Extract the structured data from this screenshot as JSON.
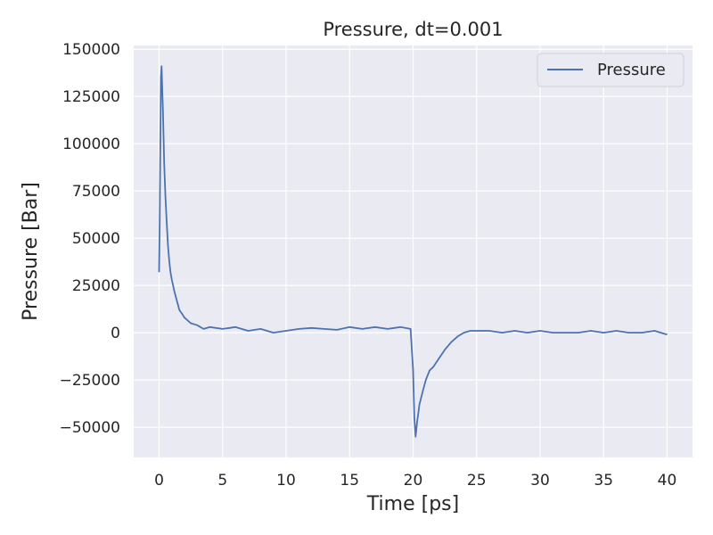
{
  "chart_data": {
    "type": "line",
    "title": "Pressure, dt=0.001",
    "xlabel": "Time [ps]",
    "ylabel": "Pressure [Bar]",
    "xlim": [
      -2,
      42
    ],
    "ylim": [
      -66000,
      152000
    ],
    "xticks": [
      0,
      5,
      10,
      15,
      20,
      25,
      30,
      35,
      40
    ],
    "yticks": [
      -50000,
      -25000,
      0,
      25000,
      50000,
      75000,
      100000,
      125000,
      150000
    ],
    "xtick_labels": [
      "0",
      "5",
      "10",
      "15",
      "20",
      "25",
      "30",
      "35",
      "40"
    ],
    "ytick_labels": [
      "−50000",
      "−25000",
      "0",
      "25000",
      "50000",
      "75000",
      "100000",
      "125000",
      "150000"
    ],
    "grid": true,
    "legend_position": "top-right",
    "colors": {
      "series": "#4c72b0",
      "background": "#eaeaf2",
      "grid": "#ffffff"
    },
    "series": [
      {
        "name": "Pressure",
        "x": [
          0,
          0.05,
          0.1,
          0.15,
          0.2,
          0.25,
          0.3,
          0.4,
          0.5,
          0.6,
          0.7,
          0.8,
          0.9,
          1.0,
          1.2,
          1.4,
          1.6,
          1.8,
          2.0,
          2.5,
          3,
          3.5,
          4,
          5,
          6,
          7,
          8,
          9,
          10,
          11,
          12,
          13,
          14,
          15,
          16,
          17,
          18,
          19,
          19.8,
          20.0,
          20.1,
          20.2,
          20.3,
          20.5,
          20.8,
          21.0,
          21.3,
          21.6,
          22.0,
          22.5,
          23.0,
          23.5,
          24.0,
          24.5,
          25,
          26,
          27,
          28,
          29,
          30,
          31,
          32,
          33,
          34,
          35,
          36,
          37,
          38,
          39,
          40
        ],
        "y": [
          32000,
          58000,
          100000,
          135000,
          141000,
          128000,
          118000,
          90000,
          72000,
          58000,
          46000,
          38000,
          32000,
          28000,
          22000,
          17000,
          12000,
          10000,
          8000,
          5000,
          4000,
          2000,
          3000,
          2000,
          3000,
          1000,
          2000,
          0,
          1000,
          2000,
          2500,
          2000,
          1500,
          3000,
          2000,
          3000,
          2000,
          3000,
          2000,
          -20000,
          -45000,
          -55000,
          -48000,
          -38000,
          -30000,
          -25000,
          -20000,
          -18000,
          -14000,
          -9000,
          -5000,
          -2000,
          0,
          1000,
          1000,
          1000,
          0,
          1000,
          0,
          1000,
          0,
          0,
          0,
          1000,
          0,
          1000,
          0,
          0,
          1000,
          -1000
        ]
      }
    ]
  }
}
